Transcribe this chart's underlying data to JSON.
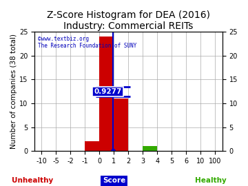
{
  "title": "Z-Score Histogram for DEA (2016)",
  "subtitle": "Industry: Commercial REITs",
  "xlabel": "Score",
  "ylabel_left": "Number of companies (38 total)",
  "watermark_line1": "©www.textbiz.org",
  "watermark_line2": "The Research Foundation of SUNY",
  "zscore_value": 0.9277,
  "zscore_label": "0.9277",
  "tick_labels": [
    "-10",
    "-5",
    "-2",
    "-1",
    "0",
    "1",
    "2",
    "3",
    "4",
    "5",
    "6",
    "10",
    "100"
  ],
  "tick_positions": [
    0,
    1,
    2,
    3,
    4,
    5,
    6,
    7,
    8,
    9,
    10,
    11,
    12
  ],
  "bar_left_indices": [
    3,
    4,
    5,
    6,
    7
  ],
  "bar_heights": [
    2,
    24,
    11,
    0,
    1
  ],
  "bar_colors": [
    "#cc0000",
    "#cc0000",
    "#cc0000",
    "#cc0000",
    "#33aa00"
  ],
  "xlim": [
    -0.5,
    12.5
  ],
  "ylim": [
    0,
    25
  ],
  "yticks": [
    0,
    5,
    10,
    15,
    20,
    25
  ],
  "grid_color": "#aaaaaa",
  "bg_color": "#ffffff",
  "unhealthy_label": "Unhealthy",
  "healthy_label": "Healthy",
  "unhealthy_color": "#cc0000",
  "healthy_color": "#33aa00",
  "annotation_color": "#0000cc",
  "title_fontsize": 10,
  "tick_fontsize": 7,
  "label_fontsize": 7.5
}
